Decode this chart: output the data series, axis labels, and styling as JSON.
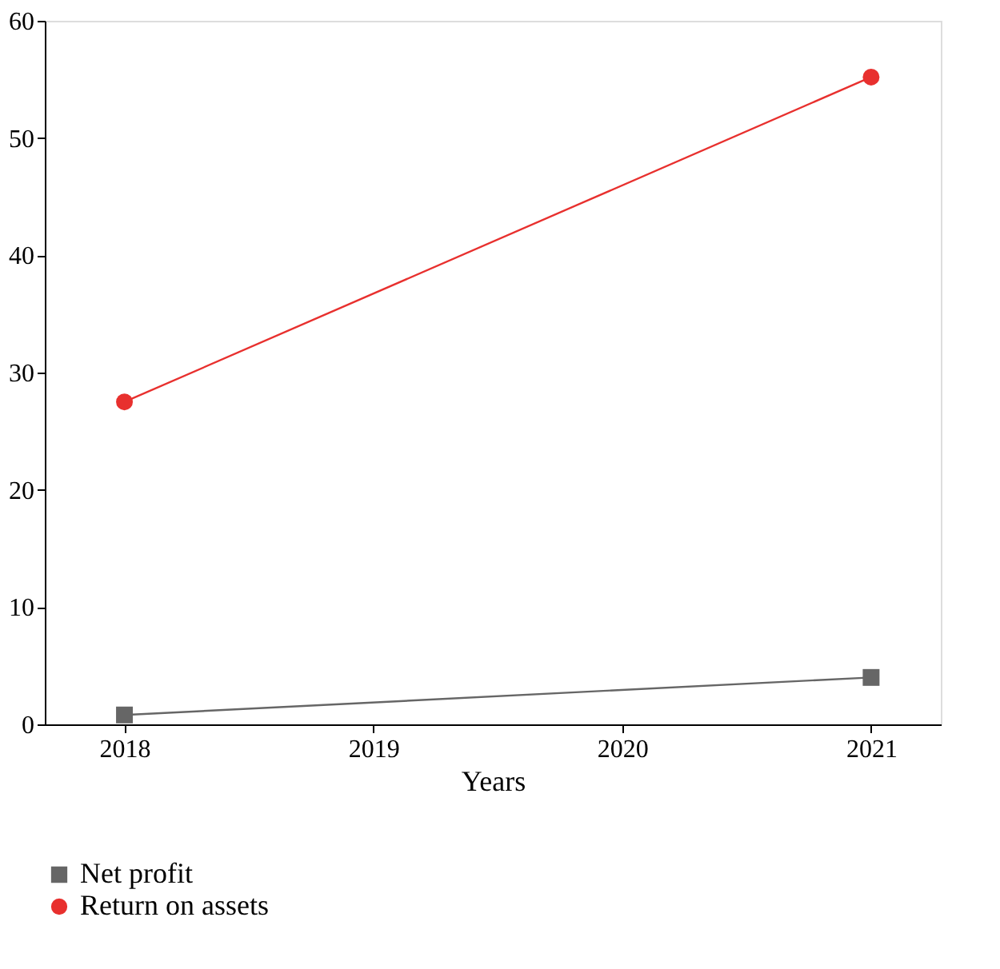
{
  "chart_data": {
    "type": "line",
    "xlabel": "Years",
    "x": [
      2018,
      2021
    ],
    "series": [
      {
        "name": "Net profit",
        "color": "#666666",
        "marker": "square",
        "values": [
          0.8,
          4.0
        ]
      },
      {
        "name": "Return on assets",
        "color": "#e8302e",
        "marker": "circle",
        "values": [
          27.5,
          55.2
        ]
      }
    ],
    "xlim": [
      2017.68,
      2021.28
    ],
    "xticks": [
      2018,
      2019,
      2020,
      2021
    ],
    "ylim": [
      0,
      60
    ],
    "yticks": [
      0,
      10,
      20,
      30,
      40,
      50,
      60
    ],
    "grid": false,
    "legend": "bottom",
    "line_style": "solid"
  }
}
